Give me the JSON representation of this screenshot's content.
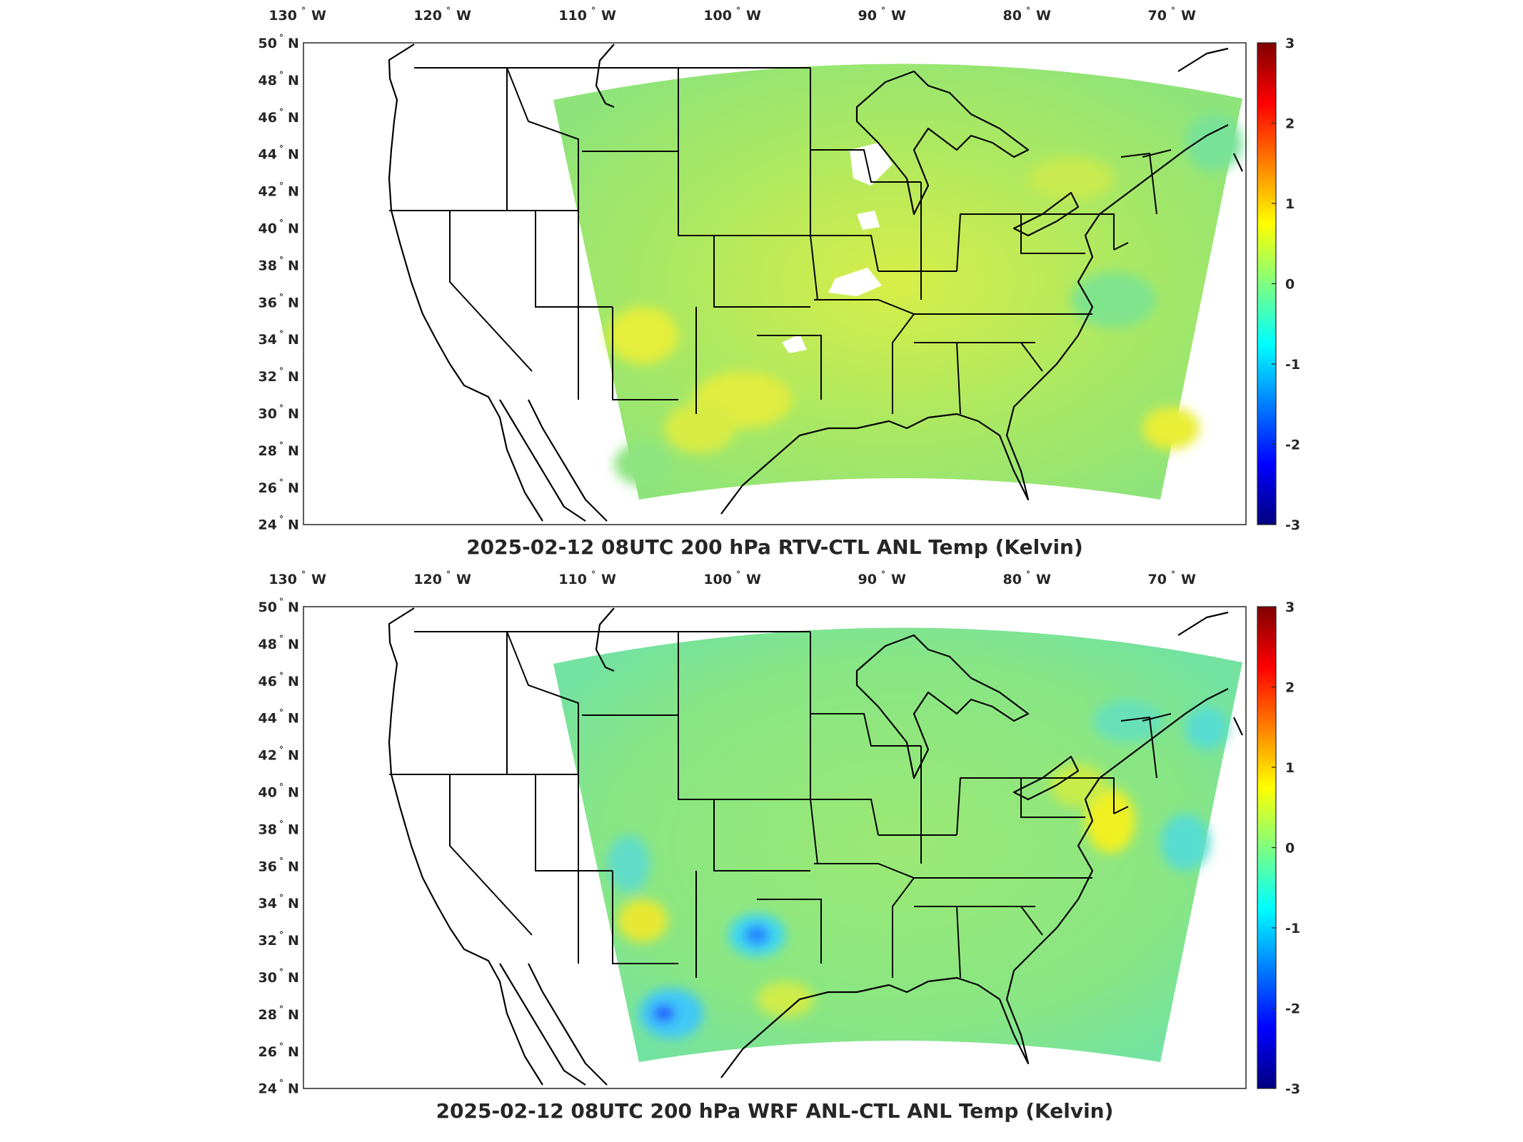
{
  "panels": [
    {
      "title": "2025-02-12 08UTC 200 hPa RTV-CTL ANL Temp (Kelvin)",
      "field_description": "mostly green/yellow-green positive anomalies; white gaps over Midwest/Plains",
      "dominant_color": "#a8e860",
      "accent_color": "#e8ee40"
    },
    {
      "title": "2025-02-12 08UTC 200 hPa WRF ANL-CTL ANL Temp (Kelvin)",
      "field_description": "mostly green; cyan/blue negatives over southwest; yellow near mid-Atlantic",
      "dominant_color": "#8ee87a",
      "accent_color": "#40d0f0"
    }
  ],
  "lon_ticks": [
    {
      "value": -130,
      "label": "130",
      "hemi": "W"
    },
    {
      "value": -120,
      "label": "120",
      "hemi": "W"
    },
    {
      "value": -110,
      "label": "110",
      "hemi": "W"
    },
    {
      "value": -100,
      "label": "100",
      "hemi": "W"
    },
    {
      "value": -90,
      "label": "90",
      "hemi": "W"
    },
    {
      "value": -80,
      "label": "80",
      "hemi": "W"
    },
    {
      "value": -70,
      "label": "70",
      "hemi": "W"
    }
  ],
  "lat_ticks": [
    {
      "value": 50,
      "label": "50",
      "hemi": "N"
    },
    {
      "value": 48,
      "label": "48",
      "hemi": "N"
    },
    {
      "value": 46,
      "label": "46",
      "hemi": "N"
    },
    {
      "value": 44,
      "label": "44",
      "hemi": "N"
    },
    {
      "value": 42,
      "label": "42",
      "hemi": "N"
    },
    {
      "value": 40,
      "label": "40",
      "hemi": "N"
    },
    {
      "value": 38,
      "label": "38",
      "hemi": "N"
    },
    {
      "value": 36,
      "label": "36",
      "hemi": "N"
    },
    {
      "value": 34,
      "label": "34",
      "hemi": "N"
    },
    {
      "value": 32,
      "label": "32",
      "hemi": "N"
    },
    {
      "value": 30,
      "label": "30",
      "hemi": "N"
    },
    {
      "value": 28,
      "label": "28",
      "hemi": "N"
    },
    {
      "value": 26,
      "label": "26",
      "hemi": "N"
    },
    {
      "value": 24,
      "label": "24",
      "hemi": "N"
    }
  ],
  "colorbar": {
    "ticks": [
      "3",
      "2",
      "1",
      "0",
      "-1",
      "-2",
      "-3"
    ],
    "range": [
      -3,
      3
    ],
    "colors": [
      "#00007f",
      "#0000ff",
      "#007fff",
      "#00ffff",
      "#7fff7f",
      "#ffff00",
      "#ff7f00",
      "#ff0000",
      "#7f0000"
    ]
  },
  "colors": {
    "axis": "#262626",
    "coast": "#000000"
  }
}
